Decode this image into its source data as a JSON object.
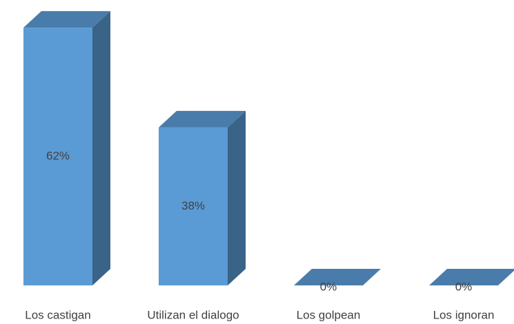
{
  "chart_data": {
    "type": "bar3d",
    "categories": [
      "Los castigan",
      "Utilizan el dialogo",
      "Los golpean",
      "Los ignoran"
    ],
    "values": [
      62,
      38,
      0,
      0
    ],
    "value_labels": [
      "62%",
      "38%",
      "0%",
      "0%"
    ],
    "color": "#5b9bd5"
  }
}
